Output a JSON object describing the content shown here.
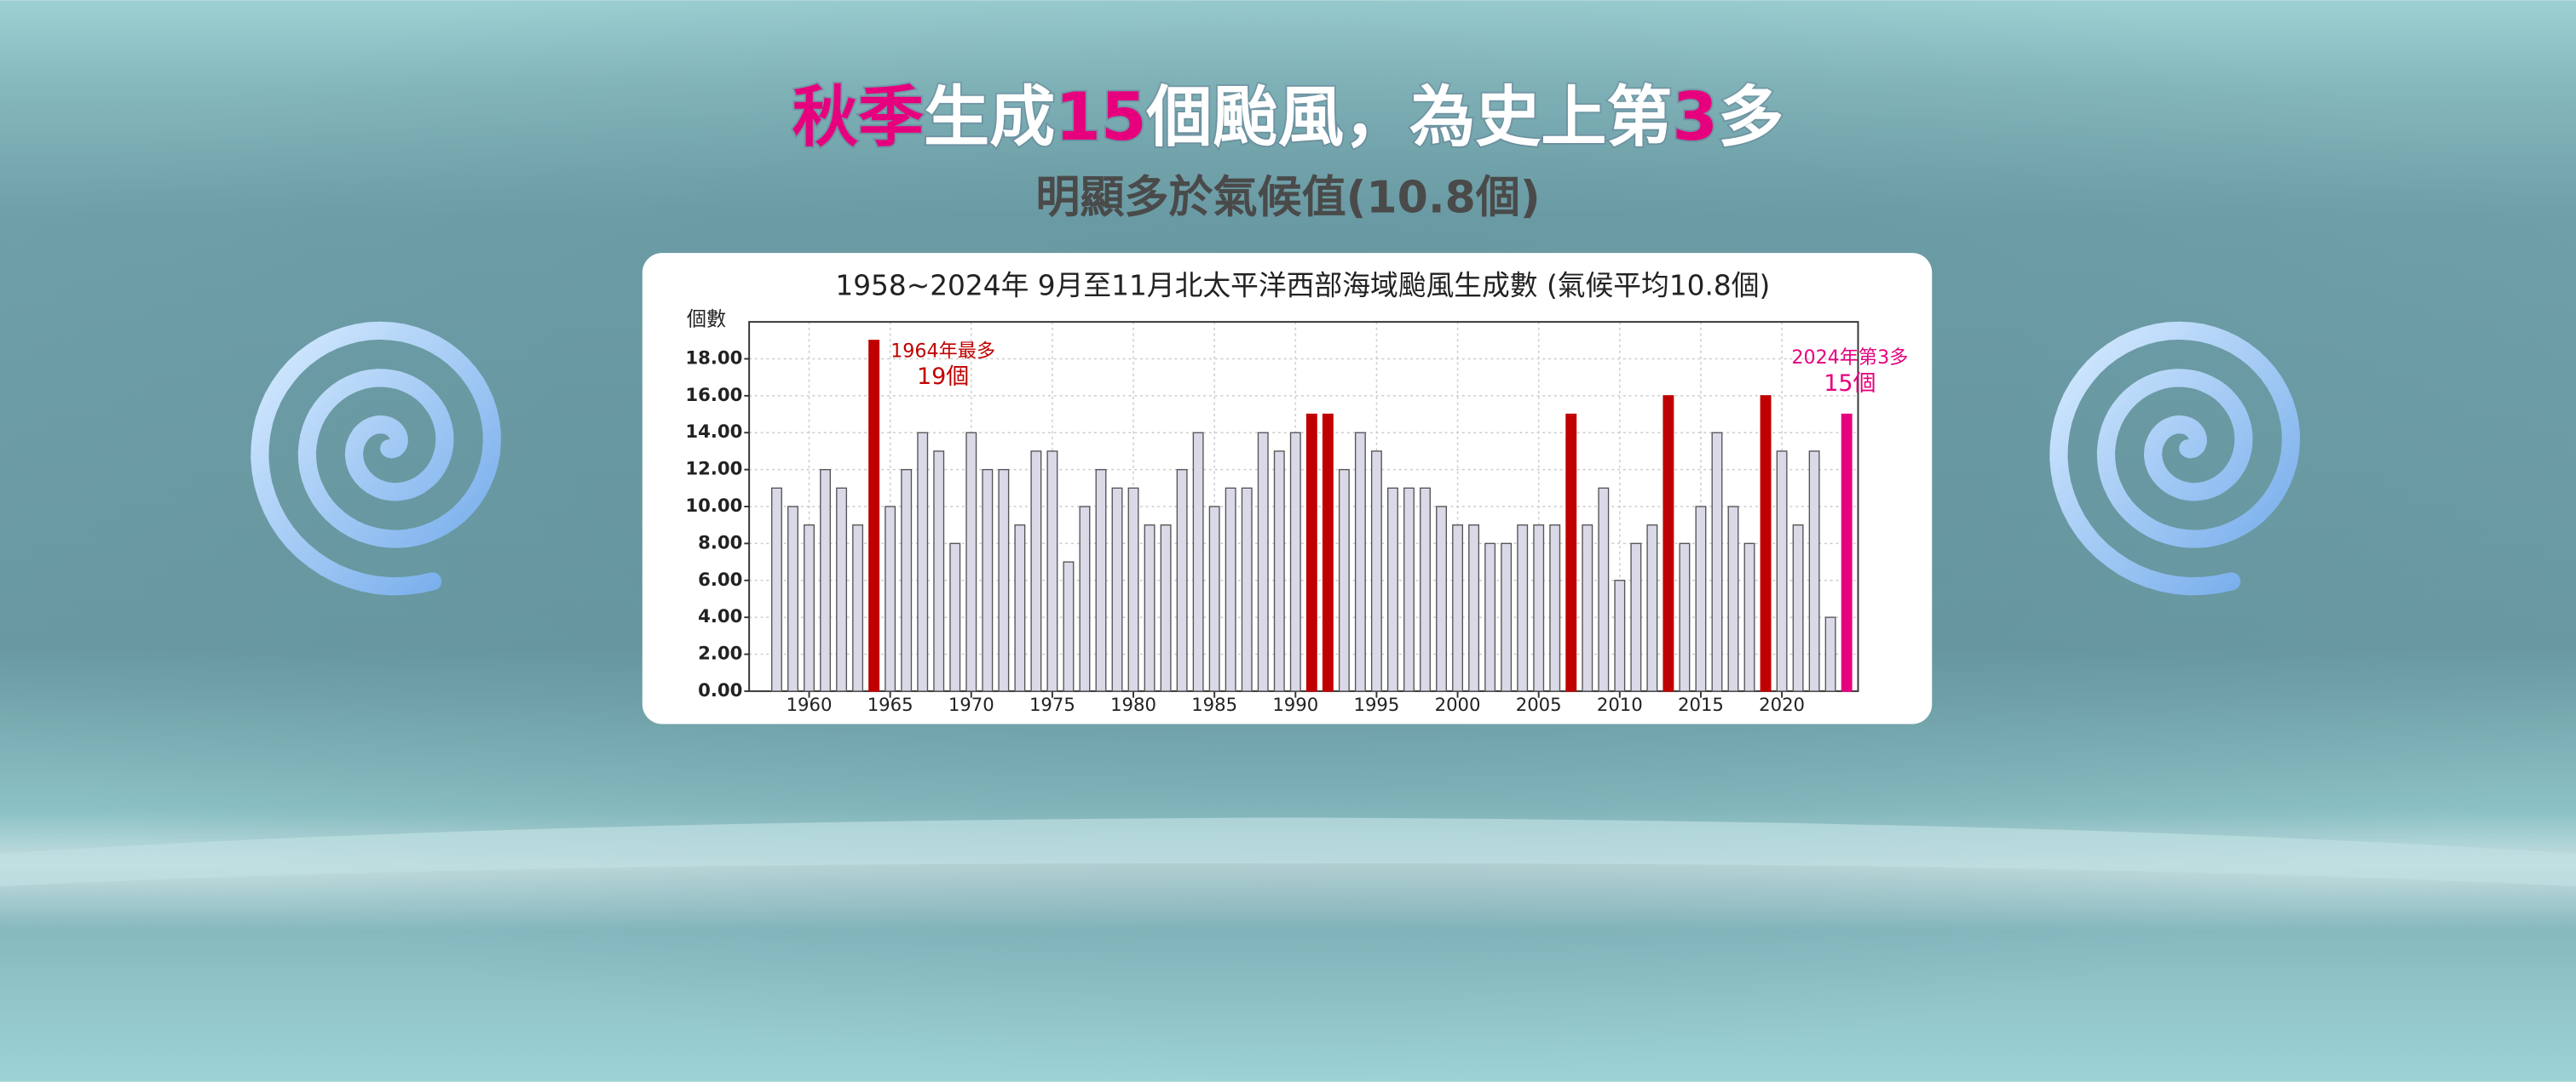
{
  "headline": [
    {
      "text": "秋季",
      "color": "#e6007e"
    },
    {
      "text": "生成",
      "color": "#ffffff"
    },
    {
      "text": "15",
      "color": "#e6007e"
    },
    {
      "text": "個颱風，為史上第",
      "color": "#ffffff"
    },
    {
      "text": "3",
      "color": "#e6007e"
    },
    {
      "text": "多",
      "color": "#ffffff"
    }
  ],
  "subtitle": "明顯多於氣候值(10.8個)",
  "chart_data": {
    "type": "bar",
    "title": "1958~2024年 9月至11月北太平洋西部海域颱風生成數 (氣候平均10.8個)",
    "y_label": "個數",
    "x": [
      1958,
      1959,
      1960,
      1961,
      1962,
      1963,
      1964,
      1965,
      1966,
      1967,
      1968,
      1969,
      1970,
      1971,
      1972,
      1973,
      1974,
      1975,
      1976,
      1977,
      1978,
      1979,
      1980,
      1981,
      1982,
      1983,
      1984,
      1985,
      1986,
      1987,
      1988,
      1989,
      1990,
      1991,
      1992,
      1993,
      1994,
      1995,
      1996,
      1997,
      1998,
      1999,
      2000,
      2001,
      2002,
      2003,
      2004,
      2005,
      2006,
      2007,
      2008,
      2009,
      2010,
      2011,
      2012,
      2013,
      2014,
      2015,
      2016,
      2017,
      2018,
      2019,
      2020,
      2021,
      2022,
      2023,
      2024
    ],
    "values": [
      11,
      10,
      9,
      12,
      11,
      9,
      19,
      10,
      12,
      14,
      13,
      8,
      14,
      12,
      12,
      9,
      13,
      13,
      7,
      10,
      12,
      11,
      11,
      9,
      9,
      12,
      14,
      10,
      11,
      11,
      14,
      13,
      14,
      15,
      15,
      12,
      14,
      13,
      11,
      11,
      11,
      10,
      9,
      9,
      8,
      8,
      9,
      9,
      9,
      15,
      9,
      11,
      6,
      8,
      9,
      16,
      8,
      10,
      14,
      10,
      8,
      16,
      13,
      9,
      13,
      4,
      15
    ],
    "colors": [
      "#d9d9e8",
      "#d9d9e8",
      "#d9d9e8",
      "#d9d9e8",
      "#d9d9e8",
      "#d9d9e8",
      "#c00000",
      "#d9d9e8",
      "#d9d9e8",
      "#d9d9e8",
      "#d9d9e8",
      "#d9d9e8",
      "#d9d9e8",
      "#d9d9e8",
      "#d9d9e8",
      "#d9d9e8",
      "#d9d9e8",
      "#d9d9e8",
      "#d9d9e8",
      "#d9d9e8",
      "#d9d9e8",
      "#d9d9e8",
      "#d9d9e8",
      "#d9d9e8",
      "#d9d9e8",
      "#d9d9e8",
      "#d9d9e8",
      "#d9d9e8",
      "#d9d9e8",
      "#d9d9e8",
      "#d9d9e8",
      "#d9d9e8",
      "#d9d9e8",
      "#c00000",
      "#c00000",
      "#d9d9e8",
      "#d9d9e8",
      "#d9d9e8",
      "#d9d9e8",
      "#d9d9e8",
      "#d9d9e8",
      "#d9d9e8",
      "#d9d9e8",
      "#d9d9e8",
      "#d9d9e8",
      "#d9d9e8",
      "#d9d9e8",
      "#d9d9e8",
      "#d9d9e8",
      "#c00000",
      "#d9d9e8",
      "#d9d9e8",
      "#d9d9e8",
      "#d9d9e8",
      "#d9d9e8",
      "#c00000",
      "#d9d9e8",
      "#d9d9e8",
      "#d9d9e8",
      "#d9d9e8",
      "#d9d9e8",
      "#c00000",
      "#d9d9e8",
      "#d9d9e8",
      "#d9d9e8",
      "#d9d9e8",
      "#e6007e"
    ],
    "xlim": [
      1956.3,
      2024.7
    ],
    "xticks": [
      1960,
      1965,
      1970,
      1975,
      1980,
      1985,
      1990,
      1995,
      2000,
      2005,
      2010,
      2015,
      2020
    ],
    "ylim": [
      0,
      20
    ],
    "yticks": [
      {
        "value": 0,
        "label": "0.00"
      },
      {
        "value": 2,
        "label": "2.00"
      },
      {
        "value": 4,
        "label": "4.00"
      },
      {
        "value": 6,
        "label": "6.00"
      },
      {
        "value": 8,
        "label": "8.00"
      },
      {
        "value": 10,
        "label": "10.00"
      },
      {
        "value": 12,
        "label": "12.00"
      },
      {
        "value": 14,
        "label": "14.00"
      },
      {
        "value": 16,
        "label": "16.00"
      },
      {
        "value": 18,
        "label": "18.00"
      }
    ],
    "grid": true,
    "annotations": [
      {
        "lines": [
          "1964年最多",
          "19個"
        ],
        "color": "#c00000"
      },
      {
        "lines": [
          "2024年第3多",
          "15個"
        ],
        "color": "#e6007e"
      }
    ]
  }
}
